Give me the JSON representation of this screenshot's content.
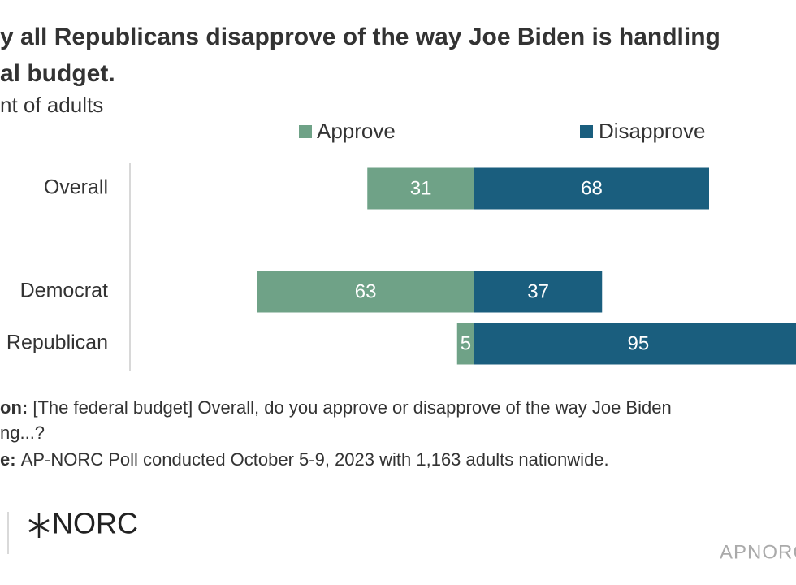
{
  "chart_data": {
    "type": "diverging_bar",
    "title_lines": [
      "y all Republicans disapprove of the way Joe Biden is handling",
      "al budget."
    ],
    "subtitle": "nt of adults",
    "categories": [
      "Overall",
      "Democrat",
      "Republican"
    ],
    "series": [
      {
        "name": "Approve",
        "color": "#6fa287",
        "values": [
          31,
          63,
          5
        ]
      },
      {
        "name": "Disapprove",
        "color": "#1a5e7e",
        "values": [
          68,
          37,
          95
        ]
      }
    ]
  },
  "notes": [
    {
      "lead": "on:",
      "text": "[The federal budget] Overall, do you approve or disapprove of the way Joe Biden"
    },
    {
      "lead": "",
      "text": "ng...?"
    },
    {
      "lead": "e:",
      "text": "AP-NORC Poll conducted October 5-9, 2023 with 1,163 adults nationwide."
    }
  ],
  "logo": "NORC",
  "brand": "APNORC"
}
